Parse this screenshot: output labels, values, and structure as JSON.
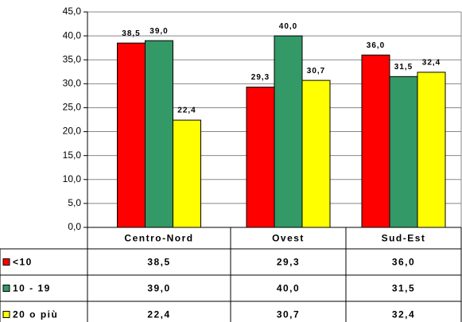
{
  "chart_data": {
    "type": "bar",
    "categories": [
      "Centro-Nord",
      "Ovest",
      "Sud-Est"
    ],
    "series": [
      {
        "name": "<10",
        "color": "#ff0000",
        "values": [
          38.5,
          29.3,
          36.0
        ],
        "value_labels": [
          "38,5",
          "29,3",
          "36,0"
        ]
      },
      {
        "name": "10 - 19",
        "color": "#339966",
        "values": [
          39.0,
          40.0,
          31.5
        ],
        "value_labels": [
          "39,0",
          "40,0",
          "31,5"
        ]
      },
      {
        "name": "20 o più",
        "color": "#ffff00",
        "values": [
          22.4,
          30.7,
          32.4
        ],
        "value_labels": [
          "22,4",
          "30,7",
          "32,4"
        ]
      }
    ],
    "ylim": [
      0,
      45
    ],
    "yticks": [
      {
        "value": 0,
        "label": "0,0"
      },
      {
        "value": 5,
        "label": "5,0"
      },
      {
        "value": 10,
        "label": "10,0"
      },
      {
        "value": 15,
        "label": "15,0"
      },
      {
        "value": 20,
        "label": "20,0"
      },
      {
        "value": 25,
        "label": "25,0"
      },
      {
        "value": 30,
        "label": "30,0"
      },
      {
        "value": 35,
        "label": "35,0"
      },
      {
        "value": 40,
        "label": "40,0"
      },
      {
        "value": 45,
        "label": "45,0"
      }
    ],
    "grid": true
  }
}
